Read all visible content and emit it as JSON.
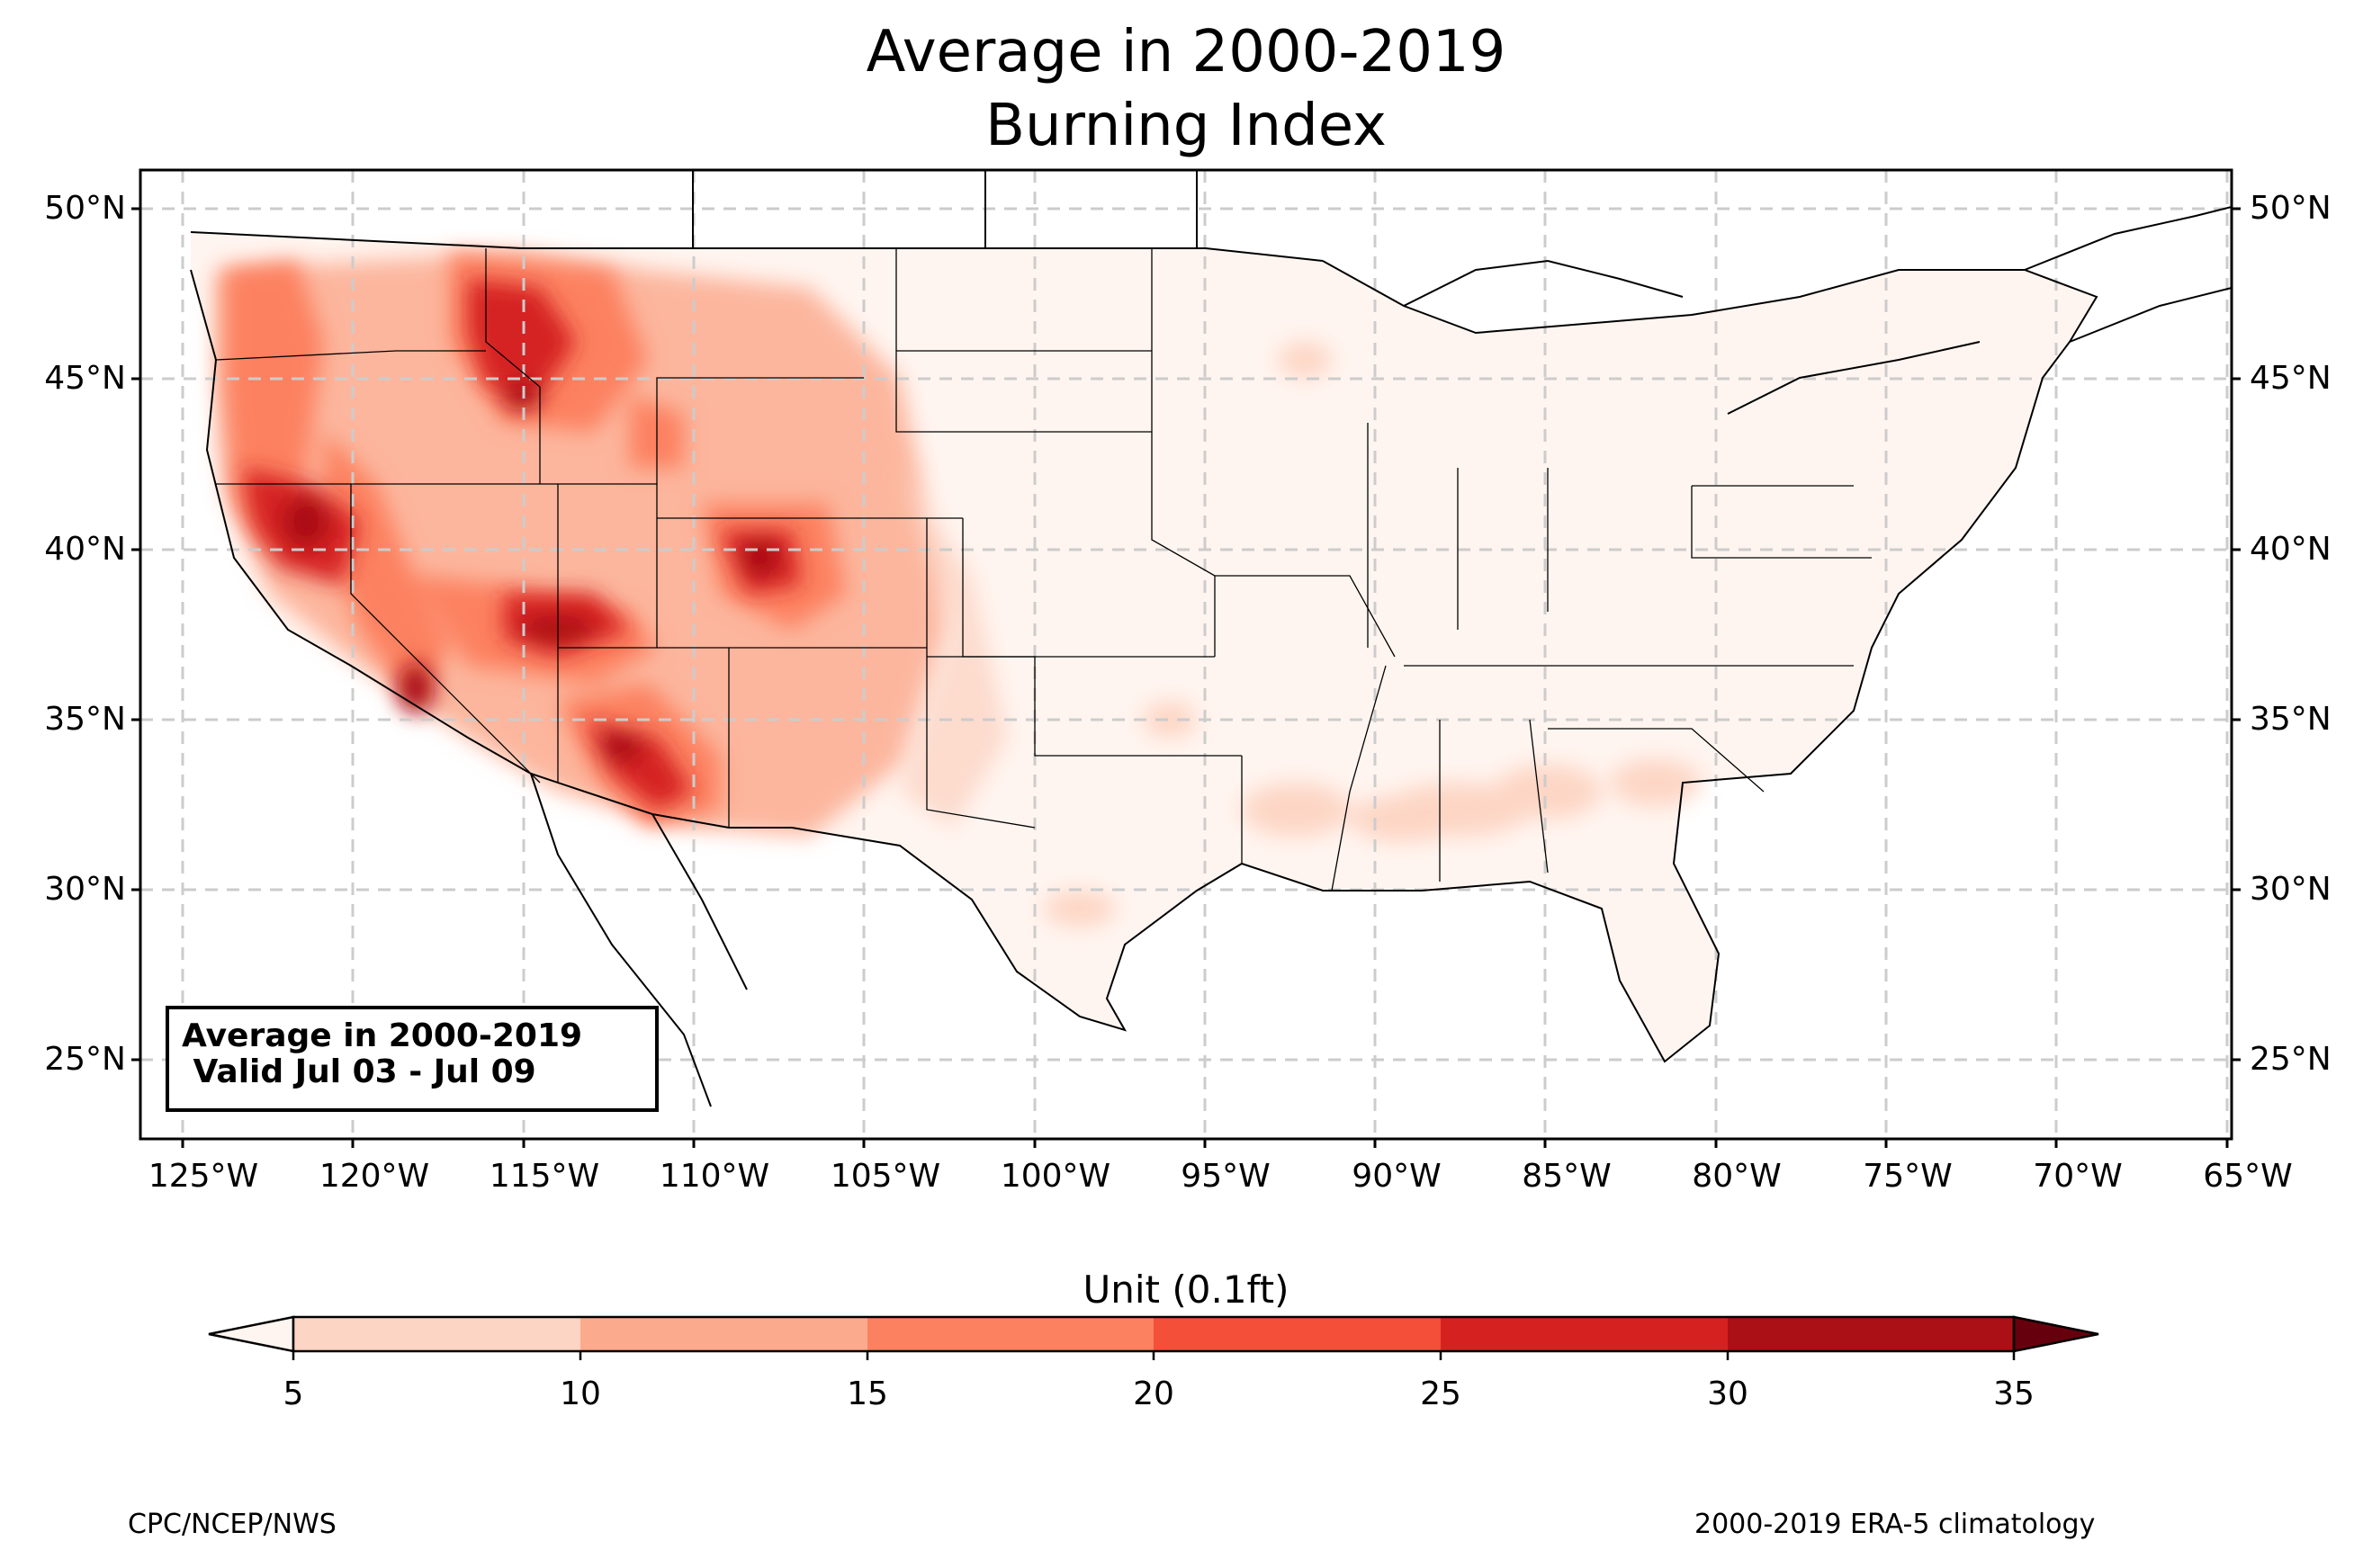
{
  "title_line1": "Average in 2000-2019",
  "title_line2": "Burning Index",
  "map": {
    "region": "CONUS",
    "lon_range": [
      -126.3,
      -64.8
    ],
    "lat_range": [
      22.8,
      51.2
    ],
    "lon_ticks": [
      "125°W",
      "120°W",
      "115°W",
      "110°W",
      "105°W",
      "100°W",
      "95°W",
      "90°W",
      "85°W",
      "80°W",
      "75°W",
      "70°W",
      "65°W"
    ],
    "lat_ticks": [
      "50°N",
      "45°N",
      "40°N",
      "35°N",
      "30°N",
      "25°N"
    ],
    "gridlines": true
  },
  "infobox": {
    "line1": "Average in 2000-2019",
    "line2": " Valid Jul 03 - Jul 09"
  },
  "colorbar": {
    "label": "Unit (0.1ft)",
    "ticks": [
      "5",
      "10",
      "15",
      "20",
      "25",
      "30",
      "35"
    ],
    "colors": [
      "#fdd5c4",
      "#fcaa8e",
      "#fc8161",
      "#f44f39",
      "#d52221",
      "#aa1016"
    ],
    "under_color": "#fff5f0",
    "over_color": "#67000d",
    "extend": "both"
  },
  "footer": {
    "left": "CPC/NCEP/NWS",
    "right": "2000-2019 ERA-5 climatology"
  }
}
